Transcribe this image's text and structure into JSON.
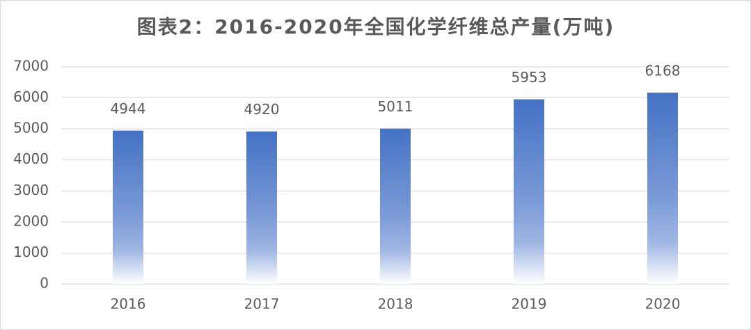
{
  "chart_data": {
    "type": "bar",
    "title": "图表2：2016-2020年全国化学纤维总产量(万吨)",
    "categories": [
      "2016",
      "2017",
      "2018",
      "2019",
      "2020"
    ],
    "values": [
      4944,
      4920,
      5011,
      5953,
      6168
    ],
    "color": "#4472c4",
    "ylim": [
      0,
      7000
    ],
    "yticks": [
      0,
      1000,
      2000,
      3000,
      4000,
      5000,
      6000,
      7000
    ],
    "grid": true
  }
}
